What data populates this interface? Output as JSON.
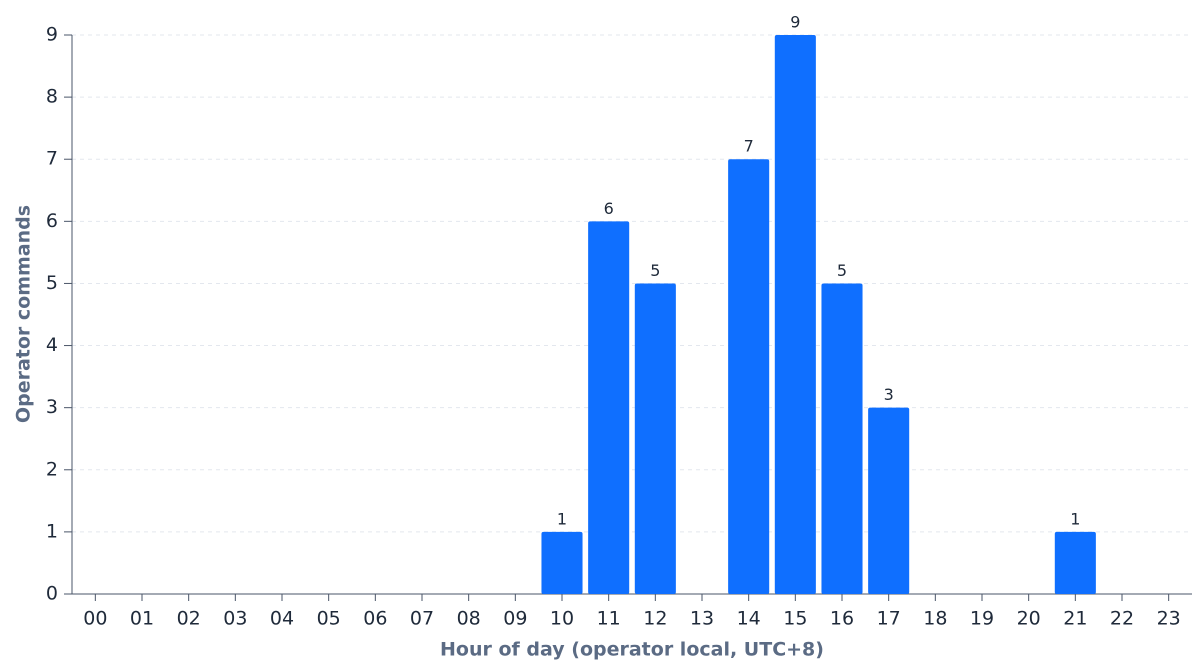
{
  "chart_data": {
    "type": "bar",
    "x_label": "Hour of day (operator local, UTC+8)",
    "y_label": "Operator commands",
    "categories": [
      "00",
      "01",
      "02",
      "03",
      "04",
      "05",
      "06",
      "07",
      "08",
      "09",
      "10",
      "11",
      "12",
      "13",
      "14",
      "15",
      "16",
      "17",
      "18",
      "19",
      "20",
      "21",
      "22",
      "23"
    ],
    "values": [
      0,
      0,
      0,
      0,
      0,
      0,
      0,
      0,
      0,
      0,
      1,
      6,
      5,
      0,
      7,
      9,
      5,
      3,
      0,
      0,
      0,
      1,
      0,
      0
    ],
    "color": "#0f6fff",
    "ylim": [
      0,
      9
    ],
    "yticks": [
      0,
      1,
      2,
      3,
      4,
      5,
      6,
      7,
      8,
      9
    ],
    "grid": true
  }
}
